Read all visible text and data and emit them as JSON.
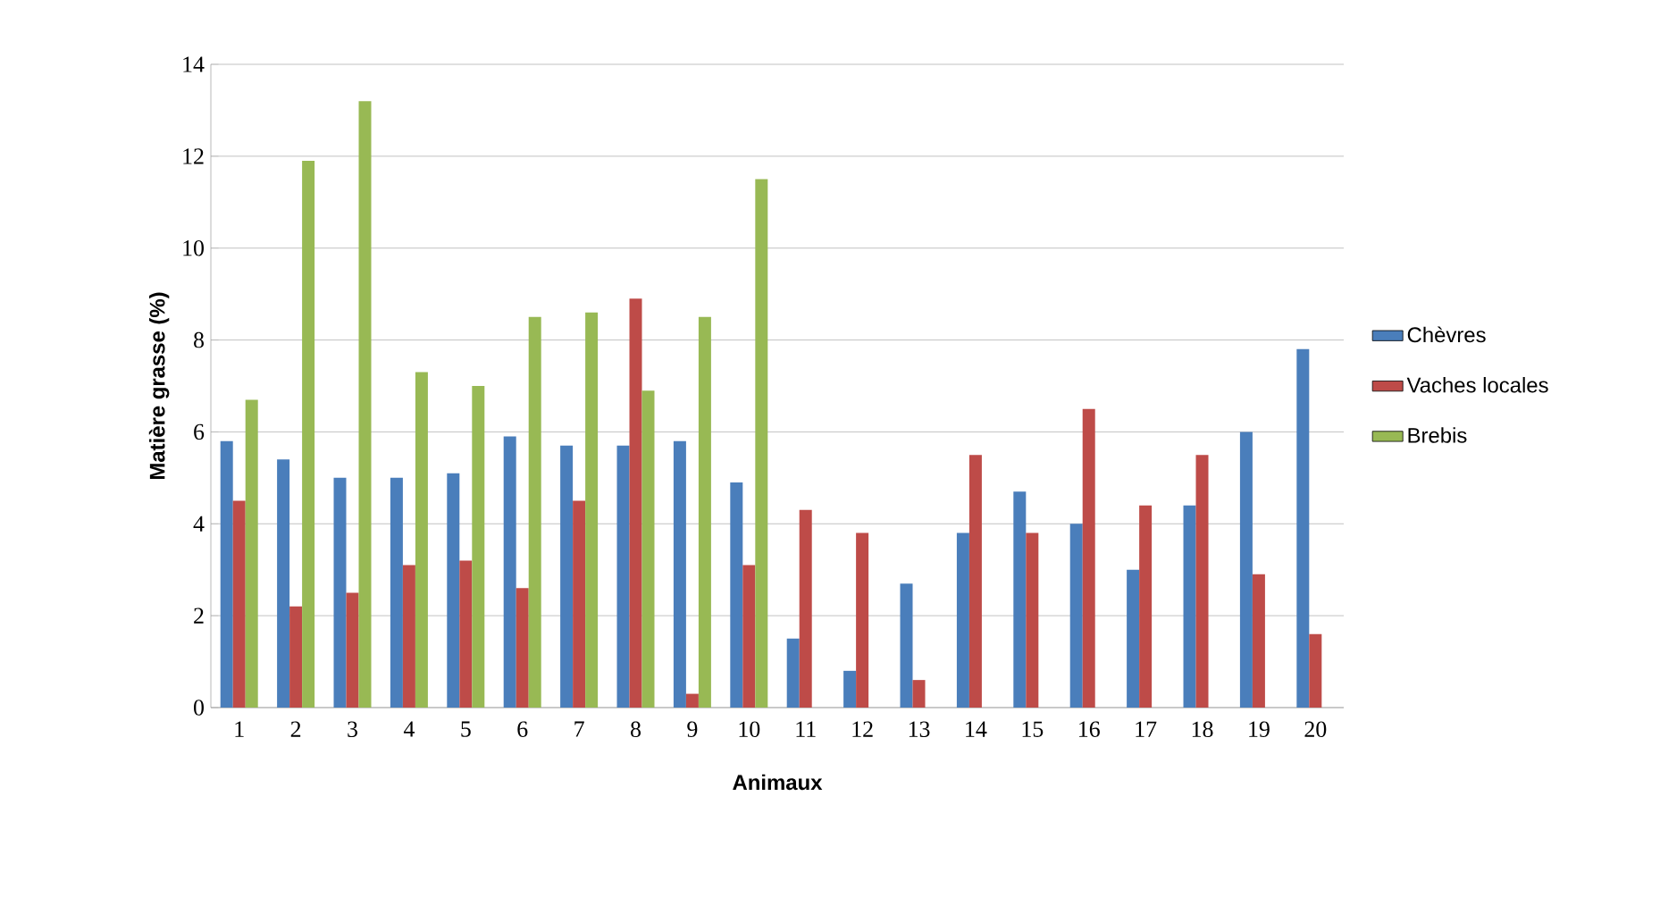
{
  "chart_data": {
    "type": "bar",
    "xlabel": "Animaux",
    "ylabel": "Matière grasse (%)",
    "categories": [
      "1",
      "2",
      "3",
      "4",
      "5",
      "6",
      "7",
      "8",
      "9",
      "10",
      "11",
      "12",
      "13",
      "14",
      "15",
      "16",
      "17",
      "18",
      "19",
      "20"
    ],
    "series": [
      {
        "name": "Chèvres",
        "color": "#4a7ebb",
        "values": [
          5.8,
          5.4,
          5.0,
          5.0,
          5.1,
          5.9,
          5.7,
          5.7,
          5.8,
          4.9,
          1.5,
          0.8,
          2.7,
          3.8,
          4.7,
          4.0,
          3.0,
          4.4,
          6.0,
          7.8
        ]
      },
      {
        "name": "Vaches locales",
        "color": "#be4b48",
        "values": [
          4.5,
          2.2,
          2.5,
          3.1,
          3.2,
          2.6,
          4.5,
          8.9,
          0.3,
          3.1,
          4.3,
          3.8,
          0.6,
          5.5,
          3.8,
          6.5,
          4.4,
          5.5,
          2.9,
          1.6
        ]
      },
      {
        "name": "Brebis",
        "color": "#98b954",
        "values": [
          6.7,
          11.9,
          13.2,
          7.3,
          7.0,
          8.5,
          8.6,
          6.9,
          8.5,
          11.5,
          null,
          null,
          null,
          null,
          null,
          null,
          null,
          null,
          null,
          null
        ]
      }
    ],
    "ylim": [
      0,
      14
    ],
    "yticks": [
      0,
      2,
      4,
      6,
      8,
      10,
      12,
      14
    ],
    "grid": "y",
    "legend": "right"
  }
}
